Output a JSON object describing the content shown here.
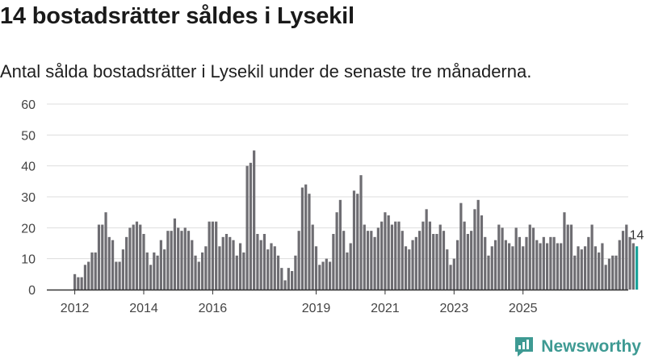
{
  "header": {
    "title": "14 bostadsrätter såldes i Lysekil",
    "subtitle": "Antal sålda bostadsrätter i Lysekil under de senaste tre månaderna."
  },
  "brand": {
    "name": "Newsworthy",
    "icon": "newsworthy-logo-icon",
    "color": "#3e9a93"
  },
  "colors": {
    "bar": "#6e6d72",
    "highlight": "#1aa39a",
    "grid": "#dddddd",
    "axis": "#333333"
  },
  "chart_data": {
    "type": "bar",
    "title": "14 bostadsrätter såldes i Lysekil",
    "subtitle": "Antal sålda bostadsrätter i Lysekil under de senaste tre månaderna.",
    "xlabel": "",
    "ylabel": "",
    "ylim": [
      0,
      60
    ],
    "yticks": [
      0,
      10,
      20,
      30,
      40,
      50,
      60
    ],
    "grid": true,
    "xtick_labels": [
      {
        "label": "2012",
        "index": 0
      },
      {
        "label": "2014",
        "index": 20
      },
      {
        "label": "2016",
        "index": 40
      },
      {
        "label": "2019",
        "index": 70
      },
      {
        "label": "2021",
        "index": 90
      },
      {
        "label": "2023",
        "index": 110
      },
      {
        "label": "2025",
        "index": 130
      }
    ],
    "values": [
      5,
      4,
      4,
      8,
      9,
      12,
      12,
      21,
      21,
      25,
      17,
      16,
      9,
      9,
      13,
      17,
      20,
      21,
      22,
      21,
      18,
      12,
      8,
      12,
      11,
      16,
      13,
      19,
      19,
      23,
      20,
      19,
      20,
      19,
      16,
      11,
      9,
      12,
      14,
      22,
      22,
      22,
      14,
      17,
      18,
      17,
      16,
      11,
      15,
      12,
      40,
      41,
      45,
      18,
      16,
      18,
      13,
      15,
      14,
      11,
      7,
      3,
      7,
      6,
      11,
      19,
      33,
      34,
      31,
      21,
      14,
      8,
      9,
      10,
      9,
      18,
      25,
      29,
      19,
      12,
      15,
      32,
      31,
      37,
      21,
      19,
      19,
      17,
      20,
      22,
      25,
      24,
      21,
      22,
      22,
      19,
      14,
      13,
      16,
      17,
      19,
      22,
      26,
      22,
      18,
      18,
      21,
      19,
      13,
      8,
      10,
      16,
      28,
      22,
      18,
      19,
      26,
      29,
      24,
      17,
      11,
      14,
      16,
      21,
      20,
      16,
      15,
      14,
      20,
      17,
      14,
      17,
      21,
      20,
      16,
      15,
      17,
      15,
      17,
      17,
      15,
      15,
      25,
      21,
      21,
      11,
      14,
      13,
      14,
      17,
      21,
      14,
      12,
      15,
      8,
      10,
      11,
      11,
      16,
      19,
      21,
      17,
      15,
      14
    ],
    "highlight": {
      "index": 163,
      "value": 14,
      "label": "14"
    }
  }
}
